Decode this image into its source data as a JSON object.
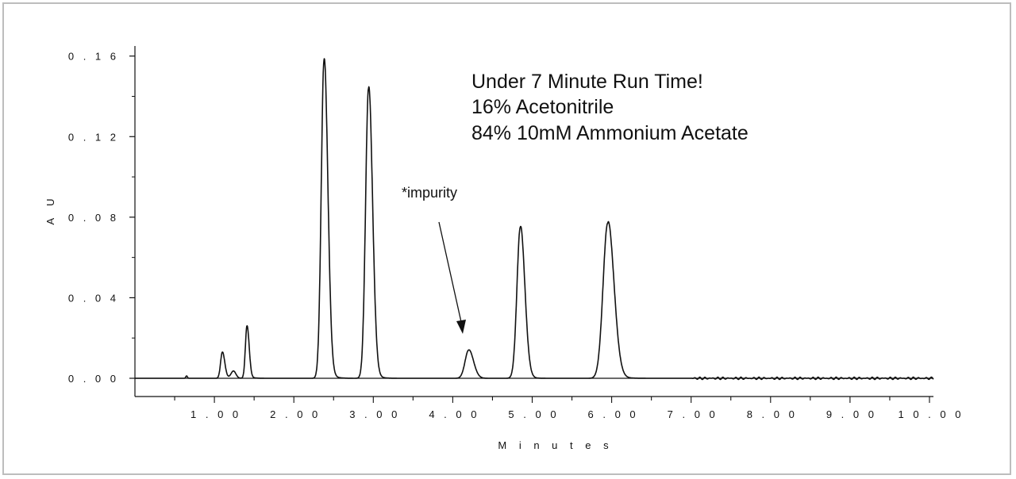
{
  "chart_data": {
    "type": "line",
    "xlabel": "M i n u t e s",
    "ylabel": "A U",
    "xlim": [
      0,
      10.05
    ],
    "ylim": [
      0,
      0.165
    ],
    "x_ticks": [
      {
        "value": 1,
        "label": "1 . 0 0"
      },
      {
        "value": 2,
        "label": "2 . 0 0"
      },
      {
        "value": 3,
        "label": "3 . 0 0"
      },
      {
        "value": 4,
        "label": "4 . 0 0"
      },
      {
        "value": 5,
        "label": "5 . 0 0"
      },
      {
        "value": 6,
        "label": "6 . 0 0"
      },
      {
        "value": 7,
        "label": "7 . 0 0"
      },
      {
        "value": 8,
        "label": "8 . 0 0"
      },
      {
        "value": 9,
        "label": "9 . 0 0"
      },
      {
        "value": 10,
        "label": "1 0 . 0 0"
      }
    ],
    "y_ticks": [
      {
        "value": 0,
        "label": "0 . 0 0"
      },
      {
        "value": 0.04,
        "label": "0 . 0 4"
      },
      {
        "value": 0.08,
        "label": "0 . 0 8"
      },
      {
        "value": 0.12,
        "label": "0 . 1 2"
      },
      {
        "value": 0.16,
        "label": "0 . 1 6"
      }
    ],
    "peaks": [
      {
        "time": 1.1,
        "height": 0.013
      },
      {
        "time": 1.41,
        "height": 0.026
      },
      {
        "time": 2.38,
        "height": 0.158
      },
      {
        "time": 2.94,
        "height": 0.144
      },
      {
        "time": 4.2,
        "height": 0.014
      },
      {
        "time": 4.85,
        "height": 0.075
      },
      {
        "time": 5.95,
        "height": 0.077
      }
    ],
    "annotations": [
      {
        "text": "*impurity",
        "points_to_time": 4.1,
        "points_to_value": 0.022
      }
    ],
    "notes": [
      "Under 7 Minute Run Time!",
      "16% Acetonitrile",
      "84% 10mM Ammonium Acetate"
    ],
    "grid": false,
    "line_color": "#111111"
  }
}
